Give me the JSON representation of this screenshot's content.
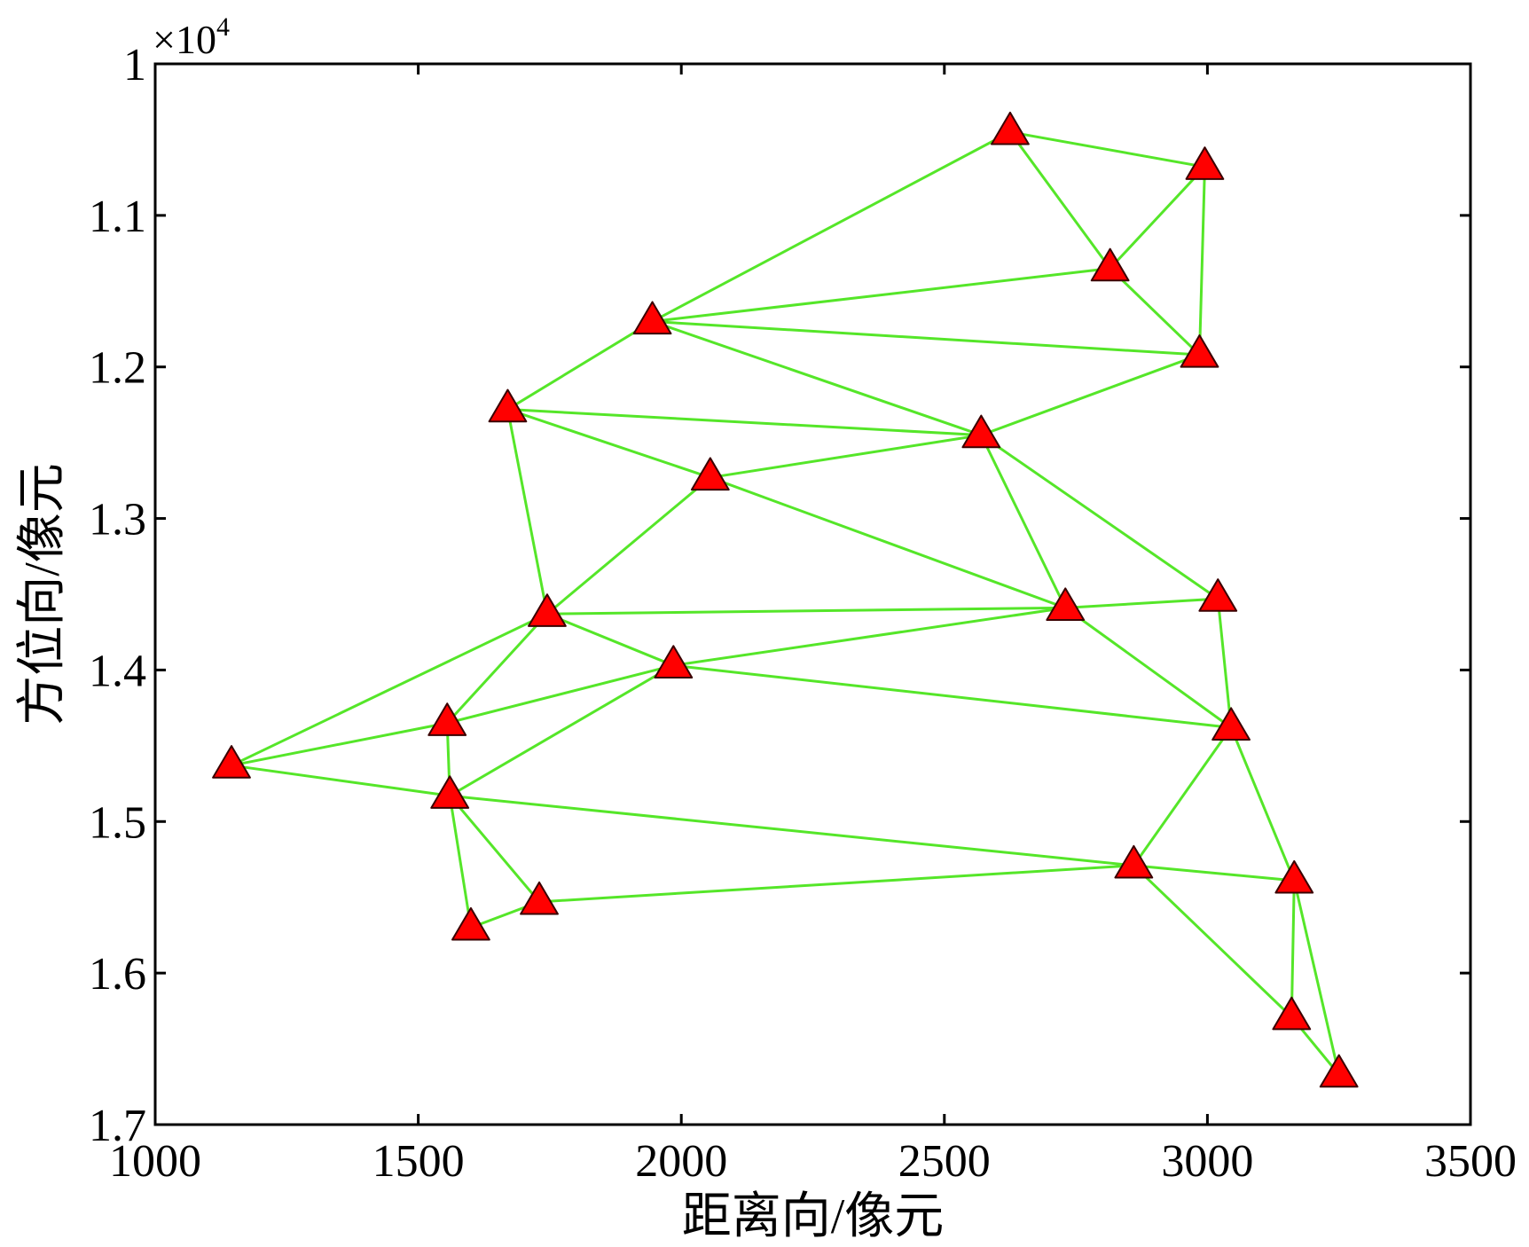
{
  "chart_data": {
    "type": "scatter",
    "title": "",
    "xlabel": "距离向/像元",
    "ylabel": "方位向/像元",
    "y_scale_label": "×10",
    "y_scale_exponent": "4",
    "xlim": [
      1000,
      3500
    ],
    "ylim": [
      10000,
      17000
    ],
    "y_axis_inverted": true,
    "grid": false,
    "x_ticks": [
      1000,
      1500,
      2000,
      2500,
      3000,
      3500
    ],
    "x_tick_labels": [
      "1000",
      "1500",
      "2000",
      "2500",
      "3000",
      "3500"
    ],
    "y_ticks": [
      10000,
      11000,
      12000,
      13000,
      14000,
      15000,
      16000,
      17000
    ],
    "y_tick_labels": [
      "1",
      "1.1",
      "1.2",
      "1.3",
      "1.4",
      "1.5",
      "1.6",
      "1.7"
    ],
    "marker": "triangle",
    "marker_color": "#ff0000",
    "edge_color": "#55e629",
    "points": [
      {
        "x": 1145,
        "y": 14630
      },
      {
        "x": 1555,
        "y": 14350
      },
      {
        "x": 1560,
        "y": 14830
      },
      {
        "x": 1600,
        "y": 15700
      },
      {
        "x": 1730,
        "y": 15530
      },
      {
        "x": 1670,
        "y": 12280
      },
      {
        "x": 1945,
        "y": 11700
      },
      {
        "x": 1745,
        "y": 13630
      },
      {
        "x": 1985,
        "y": 13970
      },
      {
        "x": 2055,
        "y": 12730
      },
      {
        "x": 2570,
        "y": 12450
      },
      {
        "x": 2625,
        "y": 10450
      },
      {
        "x": 2815,
        "y": 11350
      },
      {
        "x": 2995,
        "y": 10680
      },
      {
        "x": 2985,
        "y": 11920
      },
      {
        "x": 2730,
        "y": 13590
      },
      {
        "x": 3020,
        "y": 13530
      },
      {
        "x": 3045,
        "y": 14380
      },
      {
        "x": 2860,
        "y": 15290
      },
      {
        "x": 3165,
        "y": 15390
      },
      {
        "x": 3160,
        "y": 16290
      },
      {
        "x": 3250,
        "y": 16670
      }
    ],
    "edges": [
      [
        0,
        1
      ],
      [
        0,
        2
      ],
      [
        0,
        7
      ],
      [
        1,
        2
      ],
      [
        1,
        7
      ],
      [
        1,
        8
      ],
      [
        2,
        8
      ],
      [
        2,
        3
      ],
      [
        2,
        4
      ],
      [
        2,
        18
      ],
      [
        3,
        4
      ],
      [
        4,
        18
      ],
      [
        5,
        6
      ],
      [
        5,
        7
      ],
      [
        5,
        9
      ],
      [
        5,
        10
      ],
      [
        6,
        10
      ],
      [
        6,
        11
      ],
      [
        6,
        12
      ],
      [
        6,
        14
      ],
      [
        7,
        9
      ],
      [
        7,
        8
      ],
      [
        7,
        15
      ],
      [
        8,
        15
      ],
      [
        8,
        17
      ],
      [
        9,
        10
      ],
      [
        9,
        15
      ],
      [
        10,
        14
      ],
      [
        10,
        15
      ],
      [
        10,
        16
      ],
      [
        11,
        12
      ],
      [
        11,
        13
      ],
      [
        12,
        13
      ],
      [
        12,
        14
      ],
      [
        13,
        14
      ],
      [
        15,
        16
      ],
      [
        15,
        17
      ],
      [
        16,
        17
      ],
      [
        17,
        18
      ],
      [
        17,
        19
      ],
      [
        18,
        19
      ],
      [
        18,
        20
      ],
      [
        19,
        20
      ],
      [
        19,
        21
      ],
      [
        20,
        21
      ]
    ]
  }
}
